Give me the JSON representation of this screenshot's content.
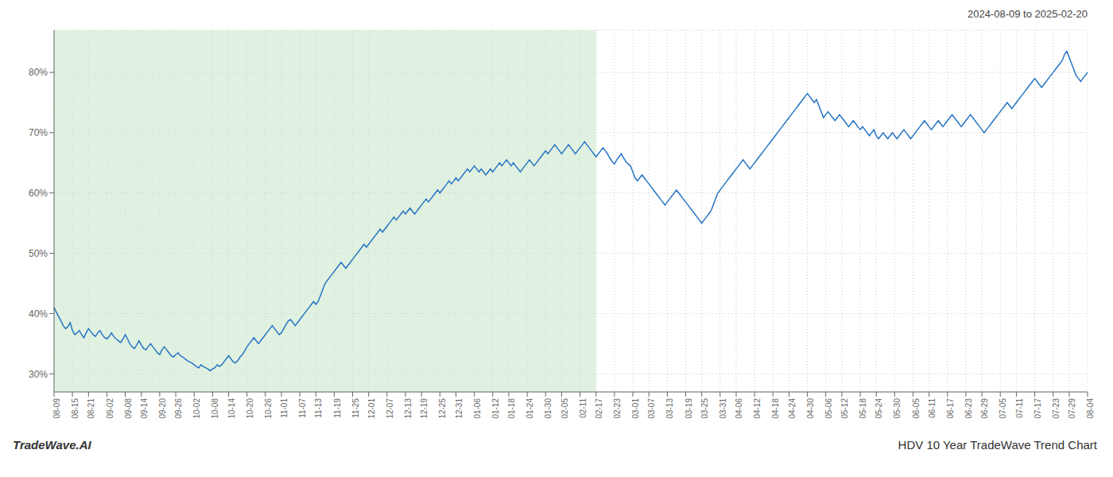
{
  "chart_data": {
    "type": "line",
    "title": "2024-08-09 to 2025-02-20",
    "annotations": [
      "TradeWave.AI",
      "HDV 10 Year TradeWave Trend Chart"
    ],
    "color": "#2575c4",
    "grid": true,
    "shaded_range": {
      "from": "08-09",
      "to": "02-17",
      "color": "#c8e6c9"
    },
    "ylim": [
      27,
      87
    ],
    "yticks": [
      {
        "value": 30,
        "label": "30%"
      },
      {
        "value": 40,
        "label": "40%"
      },
      {
        "value": 50,
        "label": "50%"
      },
      {
        "value": 60,
        "label": "60%"
      },
      {
        "value": 70,
        "label": "70%"
      },
      {
        "value": 80,
        "label": "80%"
      }
    ],
    "categories": [
      "08-09",
      null,
      null,
      null,
      null,
      null,
      null,
      null,
      "08-15",
      null,
      null,
      null,
      null,
      null,
      null,
      "08-21",
      null,
      null,
      null,
      null,
      null,
      null,
      null,
      "09-02",
      null,
      null,
      null,
      null,
      null,
      null,
      null,
      "09-08",
      null,
      null,
      null,
      null,
      null,
      null,
      "09-14",
      null,
      null,
      null,
      null,
      null,
      null,
      null,
      "09-20",
      null,
      null,
      null,
      null,
      null,
      null,
      "09-26",
      null,
      null,
      null,
      null,
      null,
      null,
      null,
      "10-02",
      null,
      null,
      null,
      null,
      null,
      null,
      null,
      "10-08",
      null,
      null,
      null,
      null,
      null,
      null,
      "10-14",
      null,
      null,
      null,
      null,
      null,
      null,
      null,
      "10-20",
      null,
      null,
      null,
      null,
      null,
      null,
      null,
      "10-26",
      null,
      null,
      null,
      null,
      null,
      null,
      "11-01",
      null,
      null,
      null,
      null,
      null,
      null,
      null,
      "11-07",
      null,
      null,
      null,
      null,
      null,
      null,
      "11-13",
      null,
      null,
      null,
      null,
      null,
      null,
      null,
      "11-19",
      null,
      null,
      null,
      null,
      null,
      null,
      null,
      "11-25",
      null,
      null,
      null,
      null,
      null,
      null,
      "12-01",
      null,
      null,
      null,
      null,
      null,
      null,
      null,
      "12-07",
      null,
      null,
      null,
      null,
      null,
      null,
      null,
      "12-13",
      null,
      null,
      null,
      null,
      null,
      null,
      "12-19",
      null,
      null,
      null,
      null,
      null,
      null,
      null,
      "12-25",
      null,
      null,
      null,
      null,
      null,
      null,
      "12-31",
      null,
      null,
      null,
      null,
      null,
      null,
      null,
      "01-06",
      null,
      null,
      null,
      null,
      null,
      null,
      null,
      "01-12",
      null,
      null,
      null,
      null,
      null,
      null,
      "01-18",
      null,
      null,
      null,
      null,
      null,
      null,
      null,
      "01-24",
      null,
      null,
      null,
      null,
      null,
      null,
      null,
      "01-30",
      null,
      null,
      null,
      null,
      null,
      null,
      "02-05",
      null,
      null,
      null,
      null,
      null,
      null,
      null,
      "02-11",
      null,
      null,
      null,
      null,
      null,
      null,
      "02-17",
      null,
      null,
      null,
      null,
      null,
      null,
      null,
      "02-23",
      null,
      null,
      null,
      null,
      null,
      null,
      null,
      "03-01",
      null,
      null,
      null,
      null,
      null,
      null,
      "03-07",
      null,
      null,
      null,
      null,
      null,
      null,
      null,
      "03-13",
      null,
      null,
      null,
      null,
      null,
      null,
      null,
      "03-19",
      null,
      null,
      null,
      null,
      null,
      null,
      "03-25",
      null,
      null,
      null,
      null,
      null,
      null,
      null,
      "03-31",
      null,
      null,
      null,
      null,
      null,
      null,
      "04-06",
      null,
      null,
      null,
      null,
      null,
      null,
      null,
      "04-12",
      null,
      null,
      null,
      null,
      null,
      null,
      null,
      "04-18",
      null,
      null,
      null,
      null,
      null,
      null,
      "04-24",
      null,
      null,
      null,
      null,
      null,
      null,
      null,
      "04-30",
      null,
      null,
      null,
      null,
      null,
      null,
      null,
      "05-06",
      null,
      null,
      null,
      null,
      null,
      null,
      "05-12",
      null,
      null,
      null,
      null,
      null,
      null,
      null,
      "05-18",
      null,
      null,
      null,
      null,
      null,
      null,
      "05-24",
      null,
      null,
      null,
      null,
      null,
      null,
      null,
      "05-30",
      null,
      null,
      null,
      null,
      null,
      null,
      null,
      "06-05",
      null,
      null,
      null,
      null,
      null,
      null,
      "06-11",
      null,
      null,
      null,
      null,
      null,
      null,
      null,
      "06-17",
      null,
      null,
      null,
      null,
      null,
      null,
      null,
      "06-23",
      null,
      null,
      null,
      null,
      null,
      null,
      "06-29",
      null,
      null,
      null,
      null,
      null,
      null,
      null,
      "07-05",
      null,
      null,
      null,
      null,
      null,
      null,
      "07-11",
      null,
      null,
      null,
      null,
      null,
      null,
      null,
      "07-17",
      null,
      null,
      null,
      null,
      null,
      null,
      null,
      "07-23",
      null,
      null,
      null,
      null,
      null,
      null,
      "07-29",
      null,
      null,
      null,
      null,
      null,
      null,
      null,
      "08-04"
    ],
    "values": [
      41.0,
      40.2,
      39.5,
      38.8,
      38.0,
      37.5,
      37.8,
      38.5,
      37.2,
      36.5,
      36.8,
      37.2,
      36.5,
      36.0,
      36.8,
      37.5,
      37.0,
      36.5,
      36.2,
      36.8,
      37.2,
      36.5,
      36.0,
      35.8,
      36.2,
      36.8,
      36.2,
      35.8,
      35.5,
      35.2,
      35.8,
      36.5,
      35.8,
      35.0,
      34.5,
      34.2,
      34.8,
      35.5,
      34.8,
      34.2,
      34.0,
      34.5,
      35.0,
      34.5,
      34.0,
      33.5,
      33.2,
      34.0,
      34.5,
      34.0,
      33.5,
      33.0,
      32.8,
      33.2,
      33.5,
      33.0,
      32.8,
      32.5,
      32.2,
      32.0,
      31.8,
      31.5,
      31.2,
      31.0,
      31.5,
      31.2,
      31.0,
      30.8,
      30.5,
      30.8,
      31.0,
      31.5,
      31.2,
      31.5,
      32.0,
      32.5,
      33.0,
      32.5,
      32.0,
      31.8,
      32.2,
      32.8,
      33.2,
      33.8,
      34.5,
      35.0,
      35.5,
      36.0,
      35.5,
      35.0,
      35.5,
      36.0,
      36.5,
      37.0,
      37.5,
      38.0,
      37.5,
      37.0,
      36.5,
      36.8,
      37.5,
      38.2,
      38.8,
      39.0,
      38.5,
      38.0,
      38.5,
      39.0,
      39.5,
      40.0,
      40.5,
      41.0,
      41.5,
      42.0,
      41.5,
      42.0,
      43.0,
      44.0,
      45.0,
      45.5,
      46.0,
      46.5,
      47.0,
      47.5,
      48.0,
      48.5,
      48.0,
      47.5,
      48.0,
      48.5,
      49.0,
      49.5,
      50.0,
      50.5,
      51.0,
      51.5,
      51.0,
      51.5,
      52.0,
      52.5,
      53.0,
      53.5,
      54.0,
      53.5,
      54.0,
      54.5,
      55.0,
      55.5,
      56.0,
      55.5,
      56.0,
      56.5,
      57.0,
      56.5,
      57.0,
      57.5,
      57.0,
      56.5,
      57.0,
      57.5,
      58.0,
      58.5,
      59.0,
      58.5,
      59.0,
      59.5,
      60.0,
      60.5,
      60.0,
      60.5,
      61.0,
      61.5,
      62.0,
      61.5,
      62.0,
      62.5,
      62.0,
      62.5,
      63.0,
      63.5,
      64.0,
      63.5,
      64.0,
      64.5,
      64.0,
      63.5,
      64.0,
      63.5,
      63.0,
      63.5,
      64.0,
      63.5,
      64.0,
      64.5,
      65.0,
      64.5,
      65.0,
      65.5,
      65.0,
      64.5,
      65.0,
      64.5,
      64.0,
      63.5,
      64.0,
      64.5,
      65.0,
      65.5,
      65.0,
      64.5,
      65.0,
      65.5,
      66.0,
      66.5,
      67.0,
      66.5,
      67.0,
      67.5,
      68.0,
      67.5,
      67.0,
      66.5,
      67.0,
      67.5,
      68.0,
      67.5,
      67.0,
      66.5,
      67.0,
      67.5,
      68.0,
      68.5,
      68.0,
      67.5,
      67.0,
      66.5,
      66.0,
      66.5,
      67.0,
      67.5,
      67.0,
      66.5,
      65.8,
      65.2,
      64.8,
      65.5,
      66.0,
      66.5,
      65.8,
      65.2,
      64.8,
      64.5,
      63.5,
      62.5,
      62.0,
      62.5,
      63.0,
      62.5,
      62.0,
      61.5,
      61.0,
      60.5,
      60.0,
      59.5,
      59.0,
      58.5,
      58.0,
      58.5,
      59.0,
      59.5,
      60.0,
      60.5,
      60.0,
      59.5,
      59.0,
      58.5,
      58.0,
      57.5,
      57.0,
      56.5,
      56.0,
      55.5,
      55.0,
      55.5,
      56.0,
      56.5,
      57.0,
      58.0,
      59.0,
      60.0,
      60.5,
      61.0,
      61.5,
      62.0,
      62.5,
      63.0,
      63.5,
      64.0,
      64.5,
      65.0,
      65.5,
      65.0,
      64.5,
      64.0,
      64.5,
      65.0,
      65.5,
      66.0,
      66.5,
      67.0,
      67.5,
      68.0,
      68.5,
      69.0,
      69.5,
      70.0,
      70.5,
      71.0,
      71.5,
      72.0,
      72.5,
      73.0,
      73.5,
      74.0,
      74.5,
      75.0,
      75.5,
      76.0,
      76.5,
      76.0,
      75.5,
      75.0,
      75.5,
      74.5,
      73.5,
      72.5,
      73.0,
      73.5,
      73.0,
      72.5,
      72.0,
      72.5,
      73.0,
      72.5,
      72.0,
      71.5,
      71.0,
      71.5,
      72.0,
      71.5,
      71.0,
      70.5,
      71.0,
      70.5,
      70.0,
      69.5,
      70.0,
      70.5,
      69.5,
      69.0,
      69.5,
      70.0,
      69.5,
      69.0,
      69.5,
      70.0,
      69.5,
      69.0,
      69.5,
      70.0,
      70.5,
      70.0,
      69.5,
      69.0,
      69.5,
      70.0,
      70.5,
      71.0,
      71.5,
      72.0,
      71.5,
      71.0,
      70.5,
      71.0,
      71.5,
      72.0,
      71.5,
      71.0,
      71.5,
      72.0,
      72.5,
      73.0,
      72.5,
      72.0,
      71.5,
      71.0,
      71.5,
      72.0,
      72.5,
      73.0,
      72.5,
      72.0,
      71.5,
      71.0,
      70.5,
      70.0,
      70.5,
      71.0,
      71.5,
      72.0,
      72.5,
      73.0,
      73.5,
      74.0,
      74.5,
      75.0,
      74.5,
      74.0,
      74.5,
      75.0,
      75.5,
      76.0,
      76.5,
      77.0,
      77.5,
      78.0,
      78.5,
      79.0,
      78.5,
      78.0,
      77.5,
      78.0,
      78.5,
      79.0,
      79.5,
      80.0,
      80.5,
      81.0,
      81.5,
      82.0,
      83.0,
      83.5,
      82.5,
      81.5,
      80.5,
      79.5,
      79.0,
      78.5,
      79.0,
      79.5,
      80.0
    ]
  }
}
